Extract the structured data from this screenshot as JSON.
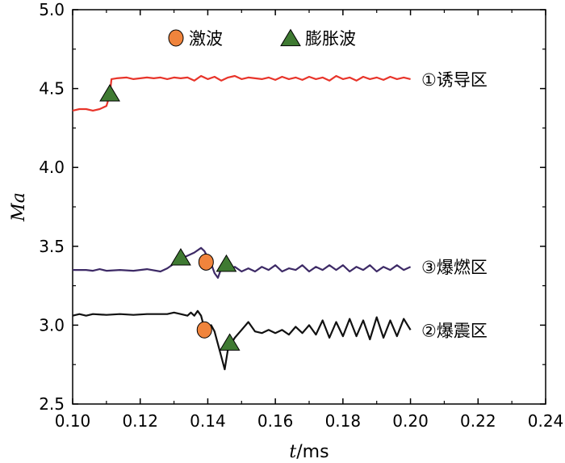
{
  "chart_data": {
    "type": "line",
    "xlabel": {
      "italic": "t",
      "rest": "/ms"
    },
    "ylabel": "Ma",
    "xlim": [
      0.1,
      0.24
    ],
    "ylim": [
      2.5,
      5.0
    ],
    "x_ticks": [
      "0.10",
      "0.12",
      "0.14",
      "0.16",
      "0.18",
      "0.20",
      "0.22",
      "0.24"
    ],
    "y_ticks": [
      "2.5",
      "3.0",
      "3.5",
      "4.0",
      "4.5",
      "5.0"
    ],
    "grid": false,
    "legend": {
      "placement": "top-center",
      "entries": [
        {
          "label": "激波",
          "marker": "circle",
          "color": "#F0843C"
        },
        {
          "label": "膨胀波",
          "marker": "triangle",
          "color": "#3F7A32"
        }
      ]
    },
    "series": [
      {
        "name": "①诱导区",
        "color": "#E8342A",
        "points": [
          [
            0.1,
            4.36
          ],
          [
            0.102,
            4.37
          ],
          [
            0.104,
            4.37
          ],
          [
            0.106,
            4.36
          ],
          [
            0.108,
            4.37
          ],
          [
            0.11,
            4.39
          ],
          [
            0.111,
            4.46
          ],
          [
            0.1115,
            4.56
          ],
          [
            0.113,
            4.565
          ],
          [
            0.116,
            4.57
          ],
          [
            0.118,
            4.56
          ],
          [
            0.12,
            4.565
          ],
          [
            0.122,
            4.57
          ],
          [
            0.124,
            4.565
          ],
          [
            0.126,
            4.57
          ],
          [
            0.128,
            4.56
          ],
          [
            0.13,
            4.57
          ],
          [
            0.132,
            4.565
          ],
          [
            0.134,
            4.57
          ],
          [
            0.136,
            4.55
          ],
          [
            0.138,
            4.58
          ],
          [
            0.14,
            4.56
          ],
          [
            0.142,
            4.575
          ],
          [
            0.144,
            4.55
          ],
          [
            0.146,
            4.57
          ],
          [
            0.148,
            4.58
          ],
          [
            0.15,
            4.56
          ],
          [
            0.152,
            4.57
          ],
          [
            0.154,
            4.565
          ],
          [
            0.156,
            4.56
          ],
          [
            0.158,
            4.57
          ],
          [
            0.16,
            4.555
          ],
          [
            0.162,
            4.575
          ],
          [
            0.164,
            4.56
          ],
          [
            0.166,
            4.57
          ],
          [
            0.168,
            4.555
          ],
          [
            0.17,
            4.575
          ],
          [
            0.172,
            4.56
          ],
          [
            0.174,
            4.57
          ],
          [
            0.176,
            4.55
          ],
          [
            0.178,
            4.58
          ],
          [
            0.18,
            4.56
          ],
          [
            0.182,
            4.57
          ],
          [
            0.184,
            4.55
          ],
          [
            0.186,
            4.575
          ],
          [
            0.188,
            4.56
          ],
          [
            0.19,
            4.57
          ],
          [
            0.192,
            4.555
          ],
          [
            0.194,
            4.575
          ],
          [
            0.196,
            4.56
          ],
          [
            0.198,
            4.57
          ],
          [
            0.2,
            4.56
          ]
        ]
      },
      {
        "name": "③爆燃区",
        "color": "#3D2A66",
        "points": [
          [
            0.1,
            3.35
          ],
          [
            0.104,
            3.35
          ],
          [
            0.106,
            3.345
          ],
          [
            0.108,
            3.355
          ],
          [
            0.11,
            3.345
          ],
          [
            0.114,
            3.35
          ],
          [
            0.118,
            3.345
          ],
          [
            0.122,
            3.355
          ],
          [
            0.126,
            3.34
          ],
          [
            0.128,
            3.36
          ],
          [
            0.13,
            3.39
          ],
          [
            0.132,
            3.42
          ],
          [
            0.134,
            3.44
          ],
          [
            0.136,
            3.46
          ],
          [
            0.138,
            3.49
          ],
          [
            0.139,
            3.47
          ],
          [
            0.14,
            3.43
          ],
          [
            0.141,
            3.39
          ],
          [
            0.142,
            3.33
          ],
          [
            0.143,
            3.3
          ],
          [
            0.144,
            3.36
          ],
          [
            0.145,
            3.38
          ],
          [
            0.146,
            3.35
          ],
          [
            0.148,
            3.37
          ],
          [
            0.15,
            3.34
          ],
          [
            0.152,
            3.36
          ],
          [
            0.154,
            3.34
          ],
          [
            0.156,
            3.37
          ],
          [
            0.158,
            3.35
          ],
          [
            0.16,
            3.38
          ],
          [
            0.162,
            3.34
          ],
          [
            0.164,
            3.36
          ],
          [
            0.166,
            3.35
          ],
          [
            0.168,
            3.38
          ],
          [
            0.17,
            3.34
          ],
          [
            0.172,
            3.37
          ],
          [
            0.174,
            3.35
          ],
          [
            0.176,
            3.38
          ],
          [
            0.178,
            3.35
          ],
          [
            0.18,
            3.38
          ],
          [
            0.182,
            3.34
          ],
          [
            0.184,
            3.37
          ],
          [
            0.186,
            3.35
          ],
          [
            0.188,
            3.38
          ],
          [
            0.19,
            3.34
          ],
          [
            0.192,
            3.37
          ],
          [
            0.194,
            3.35
          ],
          [
            0.196,
            3.38
          ],
          [
            0.198,
            3.35
          ],
          [
            0.2,
            3.37
          ]
        ]
      },
      {
        "name": "②爆震区",
        "color": "#111111",
        "points": [
          [
            0.1,
            3.06
          ],
          [
            0.102,
            3.07
          ],
          [
            0.104,
            3.06
          ],
          [
            0.106,
            3.07
          ],
          [
            0.11,
            3.065
          ],
          [
            0.114,
            3.07
          ],
          [
            0.118,
            3.065
          ],
          [
            0.122,
            3.07
          ],
          [
            0.126,
            3.07
          ],
          [
            0.128,
            3.07
          ],
          [
            0.13,
            3.08
          ],
          [
            0.132,
            3.07
          ],
          [
            0.134,
            3.06
          ],
          [
            0.135,
            3.08
          ],
          [
            0.136,
            3.06
          ],
          [
            0.137,
            3.09
          ],
          [
            0.138,
            3.06
          ],
          [
            0.139,
            2.98
          ],
          [
            0.14,
            2.97
          ],
          [
            0.141,
            3.0
          ],
          [
            0.142,
            2.96
          ],
          [
            0.143,
            2.88
          ],
          [
            0.144,
            2.8
          ],
          [
            0.145,
            2.72
          ],
          [
            0.146,
            2.85
          ],
          [
            0.148,
            2.92
          ],
          [
            0.15,
            2.97
          ],
          [
            0.152,
            3.02
          ],
          [
            0.154,
            2.96
          ],
          [
            0.156,
            2.95
          ],
          [
            0.158,
            2.97
          ],
          [
            0.16,
            2.95
          ],
          [
            0.162,
            2.97
          ],
          [
            0.164,
            2.94
          ],
          [
            0.166,
            2.99
          ],
          [
            0.168,
            2.95
          ],
          [
            0.17,
            3.0
          ],
          [
            0.172,
            2.94
          ],
          [
            0.174,
            3.03
          ],
          [
            0.176,
            2.92
          ],
          [
            0.178,
            3.02
          ],
          [
            0.18,
            2.93
          ],
          [
            0.182,
            3.04
          ],
          [
            0.184,
            2.93
          ],
          [
            0.186,
            3.03
          ],
          [
            0.188,
            2.91
          ],
          [
            0.19,
            3.05
          ],
          [
            0.192,
            2.92
          ],
          [
            0.194,
            3.03
          ],
          [
            0.196,
            2.93
          ],
          [
            0.198,
            3.04
          ],
          [
            0.2,
            2.97
          ]
        ]
      }
    ],
    "markers": [
      {
        "kind": "triangle",
        "x": 0.111,
        "y": 4.46,
        "color": "#3F7A32"
      },
      {
        "kind": "triangle",
        "x": 0.132,
        "y": 3.42,
        "color": "#3F7A32"
      },
      {
        "kind": "circle",
        "x": 0.1395,
        "y": 3.4,
        "color": "#F0843C"
      },
      {
        "kind": "triangle",
        "x": 0.1455,
        "y": 3.38,
        "color": "#3F7A32"
      },
      {
        "kind": "circle",
        "x": 0.139,
        "y": 2.97,
        "color": "#F0843C"
      },
      {
        "kind": "triangle",
        "x": 0.1465,
        "y": 2.88,
        "color": "#3F7A32"
      }
    ]
  }
}
